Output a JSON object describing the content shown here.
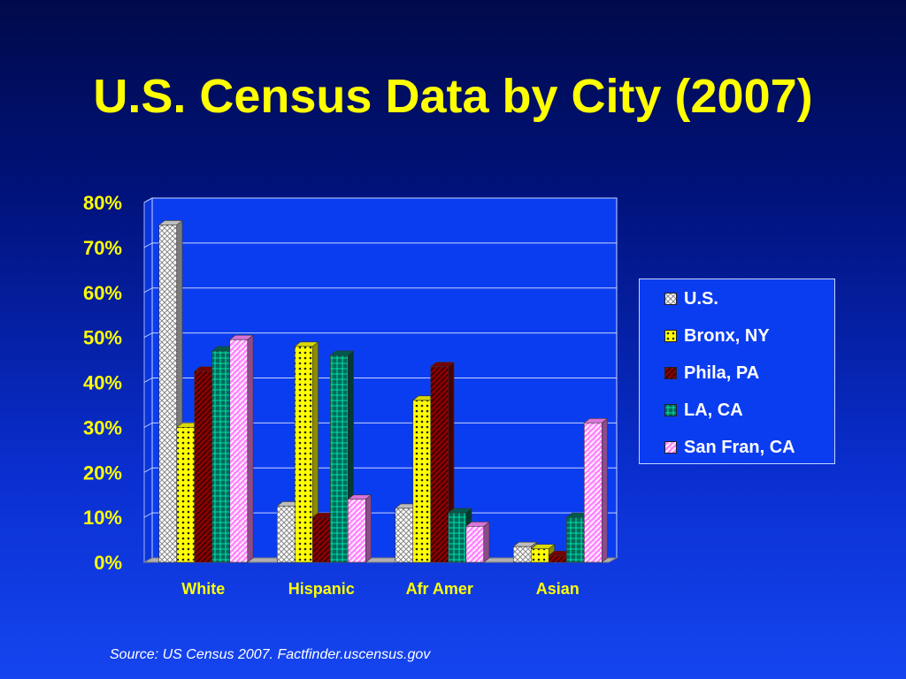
{
  "title": "U.S. Census Data by City (2007)",
  "source": "Source: US Census 2007. Factfinder.uscensus.gov",
  "colors": {
    "title": "#ffff00",
    "tick_labels": "#ffff00",
    "legend_text": "#ffffff",
    "legend_background": "#0b3df0",
    "plot_background": "#0b3df0",
    "gridlines": "#c9d4ff"
  },
  "chart_data": {
    "type": "bar",
    "categories": [
      "White",
      "Hispanic",
      "Afr Amer",
      "Asian"
    ],
    "series": [
      {
        "name": "U.S.",
        "values": [
          75,
          12.5,
          12,
          3.5
        ],
        "color": "#e0e0e0",
        "pattern": "crosshatch"
      },
      {
        "name": "Bronx, NY",
        "values": [
          30,
          48,
          36,
          3
        ],
        "color": "#ffff00",
        "pattern": "dots"
      },
      {
        "name": "Phila, PA",
        "values": [
          42.5,
          10,
          43.5,
          1.5
        ],
        "color": "#8b0000",
        "pattern": "diagonal"
      },
      {
        "name": "LA, CA",
        "values": [
          47,
          46,
          11,
          10
        ],
        "color": "#006a5a",
        "pattern": "grid"
      },
      {
        "name": "San Fran, CA",
        "values": [
          49.5,
          14,
          8,
          31
        ],
        "color": "#ff88ff",
        "pattern": "stripes"
      }
    ],
    "y_ticks": [
      "0%",
      "10%",
      "20%",
      "30%",
      "40%",
      "50%",
      "60%",
      "70%",
      "80%"
    ],
    "ylim": [
      0,
      80
    ],
    "y_unit": "%",
    "grid": true,
    "legend_position": "right",
    "three_d": true
  }
}
